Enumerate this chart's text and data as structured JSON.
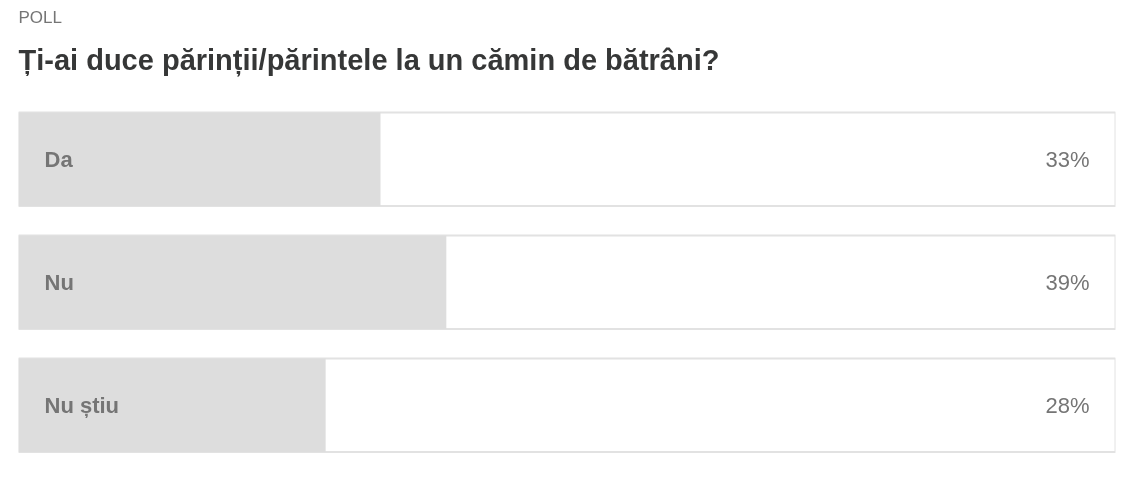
{
  "chart_data": {
    "type": "bar",
    "orientation": "horizontal",
    "subtitle": "POLL",
    "title": "Ți-ai duce părinții/părintele la un cămin de bătrâni?",
    "categories": [
      "Da",
      "Nu",
      "Nu știu"
    ],
    "values": [
      33,
      39,
      28
    ],
    "value_labels": [
      "33%",
      "39%",
      "28%"
    ],
    "color": "#dddddd",
    "xlim": [
      0,
      100
    ],
    "tick_labels": false
  }
}
